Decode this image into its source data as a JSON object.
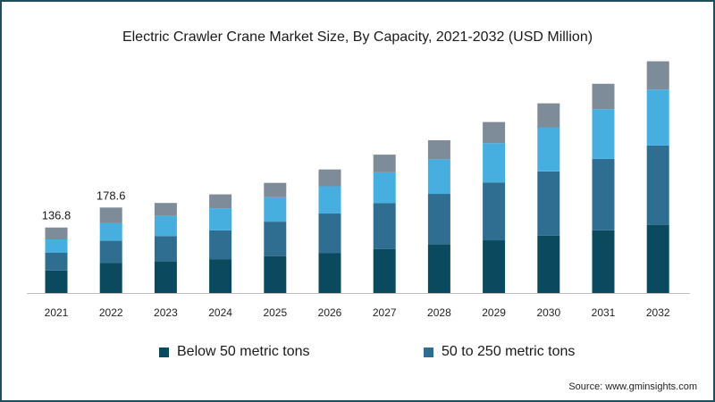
{
  "source": "Source: www.gminsights.com",
  "chart_data": {
    "type": "bar",
    "stacked": true,
    "title": "Electric Crawler Crane Market Size, By Capacity, 2021-2032 (USD Million)",
    "categories": [
      "2021",
      "2022",
      "2023",
      "2024",
      "2025",
      "2026",
      "2027",
      "2028",
      "2029",
      "2030",
      "2031",
      "2032"
    ],
    "series": [
      {
        "name": "Below 50 metric tons",
        "color": "#0b4a5e",
        "values": [
          47,
          63,
          66,
          70,
          77,
          83,
          92,
          102,
          110,
          120,
          131,
          143
        ]
      },
      {
        "name": "50 to 250 metric tons",
        "color": "#2f6e91",
        "values": [
          37,
          46,
          53,
          61,
          72,
          83,
          96,
          105,
          121,
          134,
          149,
          165
        ]
      },
      {
        "values": [
          28,
          37,
          42,
          46,
          51,
          57,
          64,
          72,
          82,
          92,
          104,
          117
        ]
      },
      {
        "values": [
          24.8,
          32.6,
          27,
          29,
          30,
          35,
          37,
          40,
          44,
          50,
          53,
          59
        ]
      }
    ],
    "series_colors_unlabeled": [
      "#47aee0",
      "#7e8c9a"
    ],
    "data_labels": [
      {
        "category": "2021",
        "label": "136.8"
      },
      {
        "category": "2022",
        "label": "178.6"
      }
    ],
    "ylim": [
      0,
      500
    ],
    "grid": false,
    "legend_position": "bottom"
  }
}
